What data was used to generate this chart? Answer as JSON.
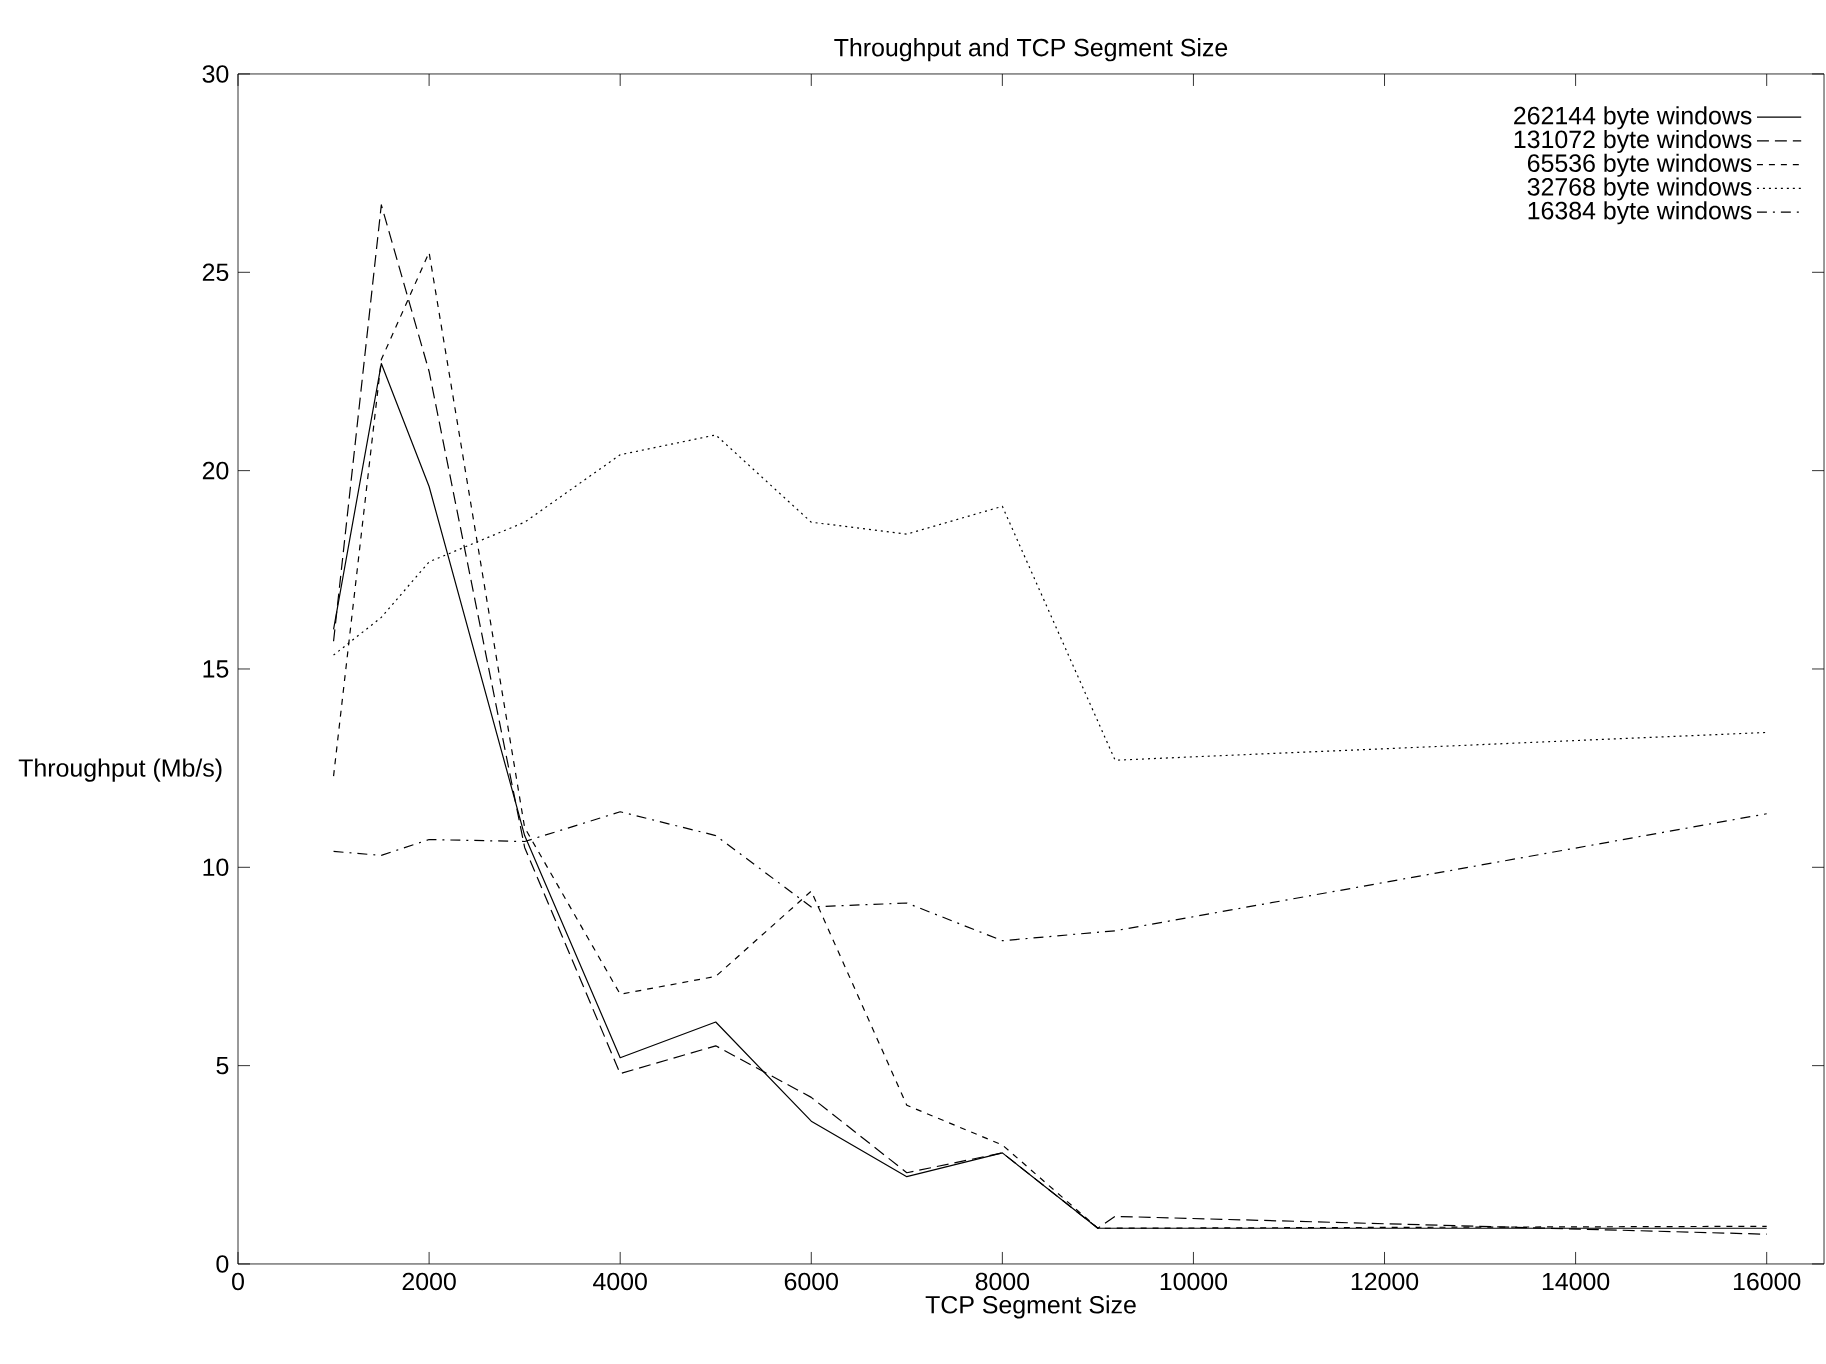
{
  "chart_data": {
    "type": "line",
    "title": "Throughput and TCP Segment Size",
    "xlabel": "TCP Segment Size",
    "ylabel": "Throughput (Mb/s)",
    "xlim": [
      0,
      16600
    ],
    "ylim": [
      0,
      30
    ],
    "xticks": [
      0,
      2000,
      4000,
      6000,
      8000,
      10000,
      12000,
      14000,
      16000
    ],
    "yticks": [
      0,
      5,
      10,
      15,
      20,
      25,
      30
    ],
    "legend": "top right",
    "grid": false,
    "marker": "none",
    "series": [
      {
        "name": "262144 byte windows",
        "color": "#000000",
        "line_style": "solid",
        "x": [
          1000,
          1500,
          2000,
          3000,
          4000,
          5000,
          6000,
          7000,
          8000,
          9000,
          16000
        ],
        "values": [
          16,
          22.7,
          19.6,
          10.8,
          5.2,
          6.1,
          3.6,
          2.2,
          2.8,
          0.9,
          0.9
        ]
      },
      {
        "name": "131072 byte windows",
        "color": "#000000",
        "line_style": "dashed",
        "x": [
          1000,
          1500,
          2000,
          3000,
          4000,
          5000,
          6000,
          7000,
          8000,
          9000,
          9180,
          16000
        ],
        "values": [
          15.7,
          26.7,
          22.5,
          10.5,
          4.8,
          5.5,
          4.2,
          2.3,
          2.8,
          0.9,
          1.2,
          0.75
        ]
      },
      {
        "name": "65536 byte windows",
        "color": "#000000",
        "line_style": "densely dashed",
        "x": [
          1000,
          1500,
          2000,
          3000,
          4000,
          5000,
          6000,
          7000,
          8000,
          9000,
          16000
        ],
        "values": [
          12.3,
          22.8,
          25.5,
          11,
          6.8,
          7.25,
          9.4,
          4,
          3,
          0.9,
          0.95
        ]
      },
      {
        "name": "32768 byte windows",
        "color": "#000000",
        "line_style": "dotted",
        "x": [
          1000,
          1500,
          2000,
          3000,
          4000,
          5000,
          6000,
          7000,
          8000,
          9180,
          16000
        ],
        "values": [
          15.35,
          16.3,
          17.7,
          18.7,
          20.4,
          20.9,
          18.7,
          18.4,
          19.1,
          12.7,
          13.4
        ]
      },
      {
        "name": "16384 byte windows",
        "color": "#000000",
        "line_style": "dashdotted",
        "x": [
          1000,
          1500,
          2000,
          3000,
          4000,
          5000,
          6000,
          7000,
          8000,
          9180,
          16000
        ],
        "values": [
          10.4,
          10.3,
          10.7,
          10.65,
          11.4,
          10.8,
          9,
          9.1,
          8.15,
          8.4,
          11.35
        ]
      }
    ]
  }
}
